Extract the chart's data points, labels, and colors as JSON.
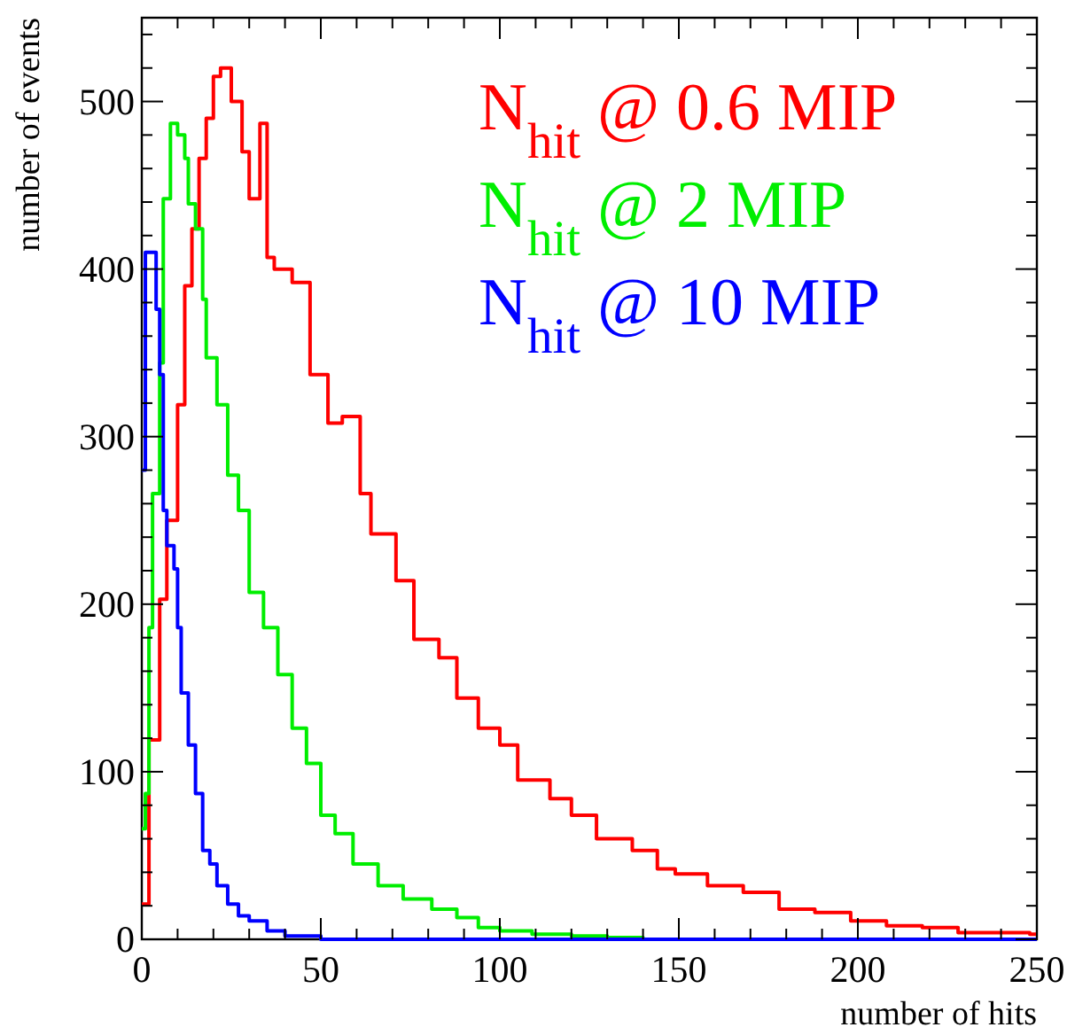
{
  "chart_data": {
    "type": "step",
    "xlabel": "number of hits",
    "ylabel": "number of events",
    "xlim": [
      0,
      250
    ],
    "ylim": [
      0,
      550
    ],
    "xticks": [
      0,
      {
        "value": 10,
        "label": null
      },
      {
        "value": 20,
        "label": null
      },
      {
        "value": 30,
        "label": null
      },
      {
        "value": 40,
        "label": null
      },
      50,
      {
        "value": 60,
        "label": null
      },
      {
        "value": 70,
        "label": null
      },
      {
        "value": 80,
        "label": null
      },
      {
        "value": 90,
        "label": null
      },
      100,
      {
        "value": 110,
        "label": null
      },
      {
        "value": 120,
        "label": null
      },
      {
        "value": 130,
        "label": null
      },
      {
        "value": 140,
        "label": null
      },
      150,
      {
        "value": 160,
        "label": null
      },
      {
        "value": 170,
        "label": null
      },
      {
        "value": 180,
        "label": null
      },
      {
        "value": 190,
        "label": null
      },
      200,
      {
        "value": 210,
        "label": null
      },
      {
        "value": 220,
        "label": null
      },
      {
        "value": 230,
        "label": null
      },
      {
        "value": 240,
        "label": null
      },
      250
    ],
    "yticks": [
      0,
      {
        "value": 20,
        "label": null
      },
      {
        "value": 40,
        "label": null
      },
      {
        "value": 60,
        "label": null
      },
      {
        "value": 80,
        "label": null
      },
      100,
      {
        "value": 120,
        "label": null
      },
      {
        "value": 140,
        "label": null
      },
      {
        "value": 160,
        "label": null
      },
      {
        "value": 180,
        "label": null
      },
      200,
      {
        "value": 220,
        "label": null
      },
      {
        "value": 240,
        "label": null
      },
      {
        "value": 260,
        "label": null
      },
      {
        "value": 280,
        "label": null
      },
      300,
      {
        "value": 320,
        "label": null
      },
      {
        "value": 340,
        "label": null
      },
      {
        "value": 360,
        "label": null
      },
      {
        "value": 380,
        "label": null
      },
      400,
      {
        "value": 420,
        "label": null
      },
      {
        "value": 440,
        "label": null
      },
      {
        "value": 460,
        "label": null
      },
      {
        "value": 480,
        "label": null
      },
      500,
      {
        "value": 520,
        "label": null
      },
      {
        "value": 540,
        "label": null
      }
    ],
    "legend": "top right",
    "grid": false,
    "series": [
      {
        "name": "N$_{hit}$ @ 0.6 MIP",
        "color": "#ff0000",
        "x": [
          0,
          2,
          5,
          7,
          10,
          12,
          14,
          16,
          18,
          20,
          22,
          25,
          28,
          30,
          33,
          35,
          37,
          42,
          47,
          52,
          56,
          61,
          64,
          71,
          76,
          83,
          88,
          94,
          100,
          105,
          114,
          120,
          127,
          137,
          144,
          149,
          158,
          168,
          178,
          188,
          198,
          208,
          218,
          228,
          238,
          248,
          250
        ],
        "values": [
          21,
          119,
          203,
          250,
          319,
          390,
          424,
          466,
          490,
          515,
          520,
          500,
          470,
          442,
          487,
          407,
          400,
          392,
          337,
          308,
          312,
          266,
          242,
          214,
          179,
          168,
          144,
          126,
          116,
          95,
          84,
          74,
          60,
          53,
          42,
          39,
          32,
          28,
          18,
          16,
          11,
          8,
          7,
          4,
          4,
          3,
          3
        ]
      },
      {
        "name": "N$_{hit}$ @ 2 MIP",
        "color": "#00ee00",
        "x": [
          0,
          1,
          2,
          3,
          5,
          6,
          8,
          10,
          12,
          13,
          15,
          17,
          18,
          21,
          24,
          27,
          30,
          34,
          38,
          42,
          46,
          50,
          54,
          59,
          66,
          73,
          81,
          88,
          94,
          100,
          109,
          120,
          130,
          140,
          250
        ],
        "values": [
          66,
          87,
          186,
          266,
          344,
          442,
          487,
          480,
          466,
          439,
          424,
          382,
          347,
          319,
          277,
          256,
          207,
          186,
          158,
          126,
          105,
          74,
          63,
          45,
          32,
          24,
          18,
          13,
          7,
          5,
          3,
          2,
          1,
          0,
          0
        ]
      },
      {
        "name": "N$_{hit}$ @ 10 MIP",
        "color": "#0000ff",
        "x": [
          0,
          1,
          3,
          4,
          5,
          6,
          7,
          9,
          10,
          11,
          13,
          15,
          17,
          19,
          21,
          24,
          27,
          30,
          35,
          40,
          50,
          250
        ],
        "values": [
          280,
          410,
          410,
          376,
          337,
          256,
          235,
          221,
          186,
          147,
          116,
          87,
          53,
          45,
          32,
          21,
          14,
          11,
          5,
          2,
          0,
          0
        ]
      }
    ]
  }
}
